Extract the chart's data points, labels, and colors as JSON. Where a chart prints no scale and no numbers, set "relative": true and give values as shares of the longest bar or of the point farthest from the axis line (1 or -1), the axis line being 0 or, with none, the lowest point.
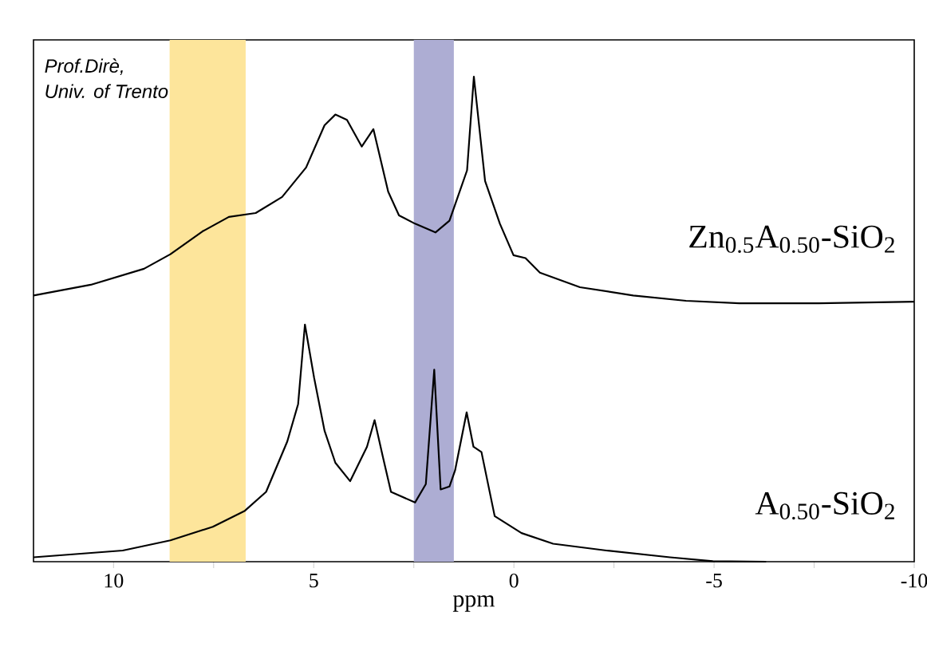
{
  "chart_data": {
    "type": "line",
    "relative": true,
    "xlabel": "ppm",
    "xlim": [
      12,
      -10
    ],
    "xticks": [
      10,
      {
        "value": 7.5,
        "label": null
      },
      5,
      {
        "value": 2.5,
        "label": null
      },
      0,
      {
        "value": -2.5,
        "label": null
      },
      -5,
      {
        "value": -7.5,
        "label": null
      },
      -10
    ],
    "annotations": [
      "Prof.Dirè,",
      "Univ. of Trento"
    ],
    "bands": [
      {
        "axis": "x",
        "from": 8.6,
        "to": 6.7,
        "color": "#fde59b"
      },
      {
        "axis": "x",
        "from": 2.5,
        "to": 1.5,
        "color": "#adadd3"
      }
    ],
    "series": [
      {
        "name": "Zn$_{0.5}$A$_{0.50}$-SiO$_{2}$",
        "color": "#000000",
        "x": [
          12,
          10.57,
          9.24,
          8.58,
          7.78,
          7.12,
          6.45,
          5.79,
          5.19,
          4.73,
          4.46,
          4.17,
          3.8,
          3.51,
          3.14,
          2.87,
          2.47,
          1.96,
          1.61,
          1.17,
          1.0,
          0.72,
          0.35,
          0.01,
          -0.29,
          -0.65,
          -1.65,
          -2.98,
          -4.3,
          -5.63,
          -7.62,
          -10
        ],
        "values": [
          0.549,
          0.571,
          0.604,
          0.634,
          0.681,
          0.711,
          0.719,
          0.752,
          0.813,
          0.9,
          0.922,
          0.911,
          0.856,
          0.892,
          0.763,
          0.714,
          0.697,
          0.679,
          0.703,
          0.807,
          1.0,
          0.785,
          0.697,
          0.632,
          0.626,
          0.596,
          0.566,
          0.549,
          0.538,
          0.533,
          0.533,
          0.536
        ]
      },
      {
        "name": "A$_{0.50}$-SiO$_{2}$",
        "color": "#000000",
        "x": [
          12,
          9.77,
          8.58,
          7.52,
          6.72,
          6.19,
          5.66,
          5.39,
          5.22,
          4.99,
          4.73,
          4.46,
          4.09,
          3.67,
          3.48,
          3.27,
          3.07,
          2.47,
          2.2,
          1.99,
          1.83,
          1.61,
          1.47,
          1.18,
          1.01,
          0.81,
          0.48,
          -0.19,
          -0.98,
          -2.31,
          -3.9,
          -4.97,
          -6.3
        ],
        "values": [
          0.009,
          0.023,
          0.044,
          0.072,
          0.105,
          0.144,
          0.248,
          0.325,
          0.489,
          0.379,
          0.27,
          0.204,
          0.166,
          0.237,
          0.292,
          0.215,
          0.144,
          0.122,
          0.16,
          0.396,
          0.149,
          0.155,
          0.188,
          0.308,
          0.237,
          0.226,
          0.094,
          0.059,
          0.037,
          0.023,
          0.009,
          0.001,
          0.0
        ]
      }
    ]
  }
}
